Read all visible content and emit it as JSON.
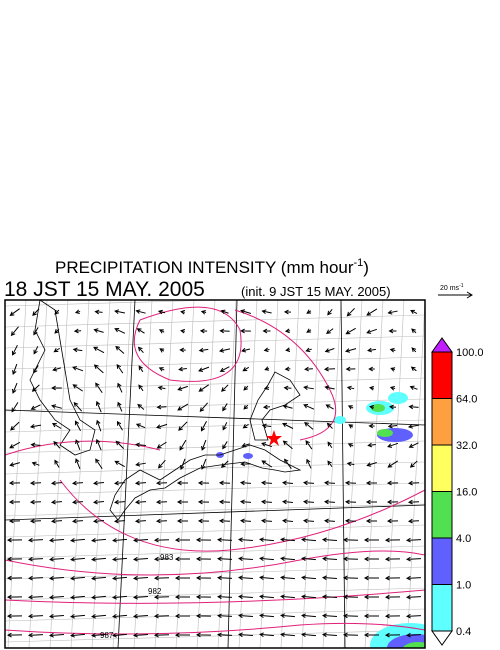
{
  "title": {
    "text": "PRECIPITATION INTENSITY (mm hour",
    "sup": "-1",
    "end": ")"
  },
  "valid_time": "18 JST 15 MAY. 2005",
  "init_time": "(init. 9 JST 15 MAY. 2005)",
  "wind_scale": {
    "text": "20 ms",
    "sup": "-1"
  },
  "colorbar": {
    "labels": [
      "100.0",
      "64.0",
      "32.0",
      "16.0",
      "4.0",
      "1.0",
      "0.4"
    ],
    "colors": [
      "#ff0000",
      "#ffa040",
      "#ffff60",
      "#50e050",
      "#6060ff",
      "#60ffff"
    ]
  },
  "contour_labels": [
    "983",
    "982",
    "987"
  ]
}
